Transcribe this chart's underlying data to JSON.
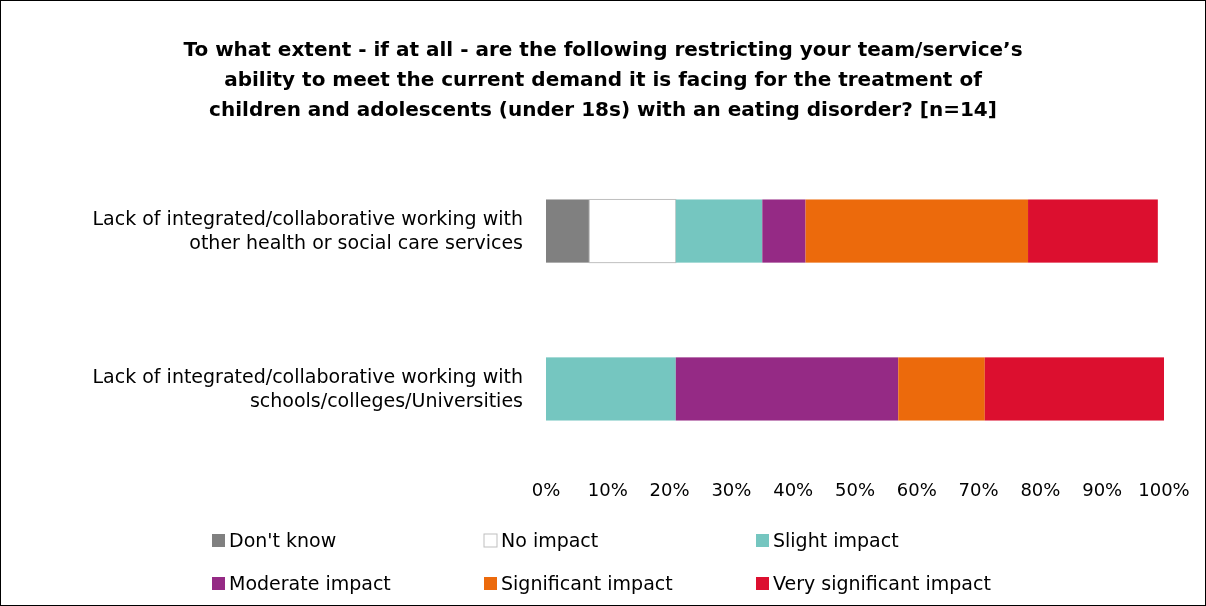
{
  "chart_data": {
    "type": "bar",
    "orientation": "horizontal",
    "stacked": true,
    "title": "To what extent - if at all - are the following restricting your team/service’s\nability to meet the current demand it is facing for the treatment of\nchildren and adolescents (under 18s) with an eating disorder? [n=14]",
    "categories": [
      "Lack of integrated/collaborative working with other health or social care services",
      "Lack of integrated/collaborative working with schools/colleges/Universities"
    ],
    "series": [
      {
        "name": "Don't know",
        "color": "#808080",
        "values": [
          7,
          0
        ]
      },
      {
        "name": "No impact",
        "color": "#ffffff",
        "values": [
          14,
          0
        ]
      },
      {
        "name": "Slight impact",
        "color": "#75c6c0",
        "values": [
          14,
          21
        ]
      },
      {
        "name": "Moderate impact",
        "color": "#952a85",
        "values": [
          7,
          36
        ]
      },
      {
        "name": "Significant impact",
        "color": "#ec6a0c",
        "values": [
          36,
          14
        ]
      },
      {
        "name": "Very significant impact",
        "color": "#dc0f2f",
        "values": [
          21,
          29
        ]
      }
    ],
    "xlim": [
      0,
      100
    ],
    "xticks": [
      {
        "value": 0,
        "label": "0%"
      },
      {
        "value": 10,
        "label": "10%"
      },
      {
        "value": 20,
        "label": "20%"
      },
      {
        "value": 30,
        "label": "30%"
      },
      {
        "value": 40,
        "label": "40%"
      },
      {
        "value": 50,
        "label": "50%"
      },
      {
        "value": 60,
        "label": "60%"
      },
      {
        "value": 70,
        "label": "70%"
      },
      {
        "value": 80,
        "label": "80%"
      },
      {
        "value": 90,
        "label": "90%"
      },
      {
        "value": 100,
        "label": "100%"
      }
    ],
    "legend": "bottom",
    "grid": false
  }
}
